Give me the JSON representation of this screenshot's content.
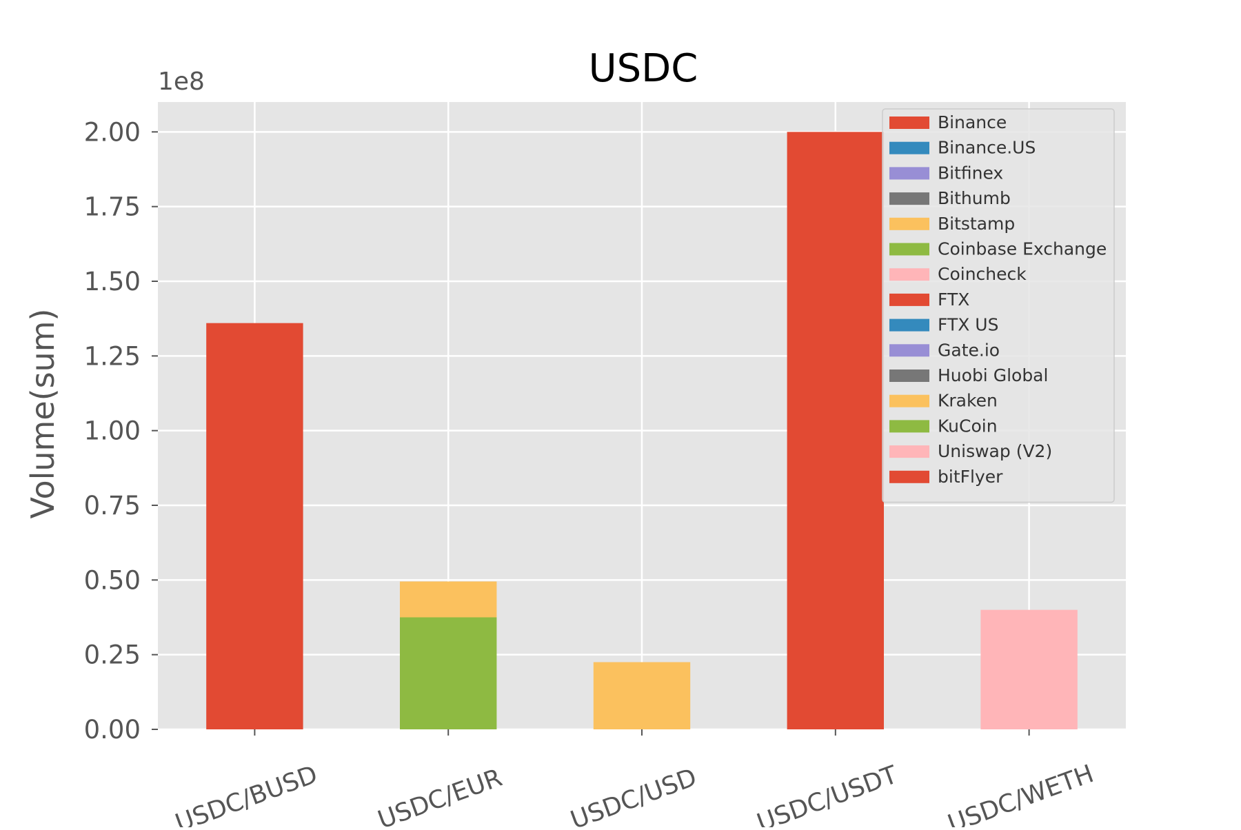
{
  "chart_data": {
    "type": "bar",
    "stacked": true,
    "title": "USDC",
    "ylabel": "Volume(sum)",
    "y_offset_label": "1e8",
    "categories": [
      "USDC/BUSD",
      "USDC/EUR",
      "USDC/USD",
      "USDC/USDT",
      "USDC/WETH"
    ],
    "ylim": [
      0,
      2.1
    ],
    "y_ticks": [
      "0.00",
      "0.25",
      "0.50",
      "0.75",
      "1.00",
      "1.25",
      "1.50",
      "1.75",
      "2.00"
    ],
    "y_tick_values": [
      0,
      0.25,
      0.5,
      0.75,
      1.0,
      1.25,
      1.5,
      1.75,
      2.0
    ],
    "grid": true,
    "legend_position": "top-right",
    "series": [
      {
        "name": "Binance",
        "color": "#E24A33",
        "values": [
          1.36,
          0,
          0,
          2.0,
          0
        ]
      },
      {
        "name": "Binance.US",
        "color": "#348ABD",
        "values": [
          0,
          0,
          0,
          0,
          0
        ]
      },
      {
        "name": "Bitfinex",
        "color": "#988ED5",
        "values": [
          0,
          0,
          0,
          0,
          0
        ]
      },
      {
        "name": "Bithumb",
        "color": "#777777",
        "values": [
          0,
          0,
          0,
          0,
          0
        ]
      },
      {
        "name": "Bitstamp",
        "color": "#FBC15E",
        "values": [
          0,
          0,
          0,
          0,
          0
        ]
      },
      {
        "name": "Coinbase Exchange",
        "color": "#8EBA42",
        "values": [
          0,
          0.375,
          0,
          0,
          0
        ]
      },
      {
        "name": "Coincheck",
        "color": "#FFB5B8",
        "values": [
          0,
          0,
          0,
          0,
          0
        ]
      },
      {
        "name": "FTX",
        "color": "#E24A33",
        "values": [
          0,
          0,
          0,
          0,
          0
        ]
      },
      {
        "name": "FTX US",
        "color": "#348ABD",
        "values": [
          0,
          0,
          0,
          0,
          0
        ]
      },
      {
        "name": "Gate.io",
        "color": "#988ED5",
        "values": [
          0,
          0,
          0,
          0,
          0
        ]
      },
      {
        "name": "Huobi Global",
        "color": "#777777",
        "values": [
          0,
          0,
          0,
          0,
          0
        ]
      },
      {
        "name": "Kraken",
        "color": "#FBC15E",
        "values": [
          0,
          0.12,
          0.225,
          0,
          0
        ]
      },
      {
        "name": "KuCoin",
        "color": "#8EBA42",
        "values": [
          0,
          0,
          0,
          0,
          0
        ]
      },
      {
        "name": "Uniswap (V2)",
        "color": "#FFB5B8",
        "values": [
          0,
          0,
          0,
          0,
          0.4
        ]
      },
      {
        "name": "bitFlyer",
        "color": "#E24A33",
        "values": [
          0,
          0,
          0,
          0,
          0
        ]
      }
    ]
  }
}
